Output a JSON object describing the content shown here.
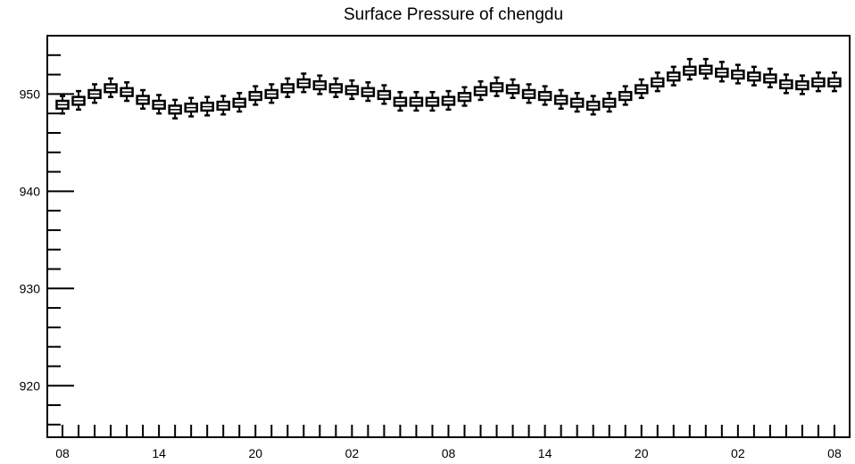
{
  "chart_data": {
    "type": "box",
    "title": "Surface Pressure of chengdu",
    "xlabel": "",
    "ylabel": "",
    "ylim": [
      914.7,
      956.0
    ],
    "y_major_ticks": [
      920,
      930,
      940,
      950
    ],
    "x_tick_labels": [
      "08",
      "14",
      "20",
      "02",
      "08",
      "14",
      "20",
      "02",
      "08"
    ],
    "x_tick_label_hours": [
      0,
      6,
      12,
      18,
      24,
      30,
      36,
      42,
      48
    ],
    "grid": false,
    "legend": "none",
    "box_color": "#000000",
    "boxes": [
      {
        "hour": 0,
        "q1": 948.5,
        "median": 948.9,
        "q3": 949.3,
        "min": 948.0,
        "max": 949.8
      },
      {
        "hour": 1,
        "q1": 948.9,
        "median": 949.3,
        "q3": 949.7,
        "min": 948.4,
        "max": 950.3
      },
      {
        "hour": 2,
        "q1": 949.6,
        "median": 950.0,
        "q3": 950.4,
        "min": 949.1,
        "max": 951.0
      },
      {
        "hour": 3,
        "q1": 950.2,
        "median": 950.6,
        "q3": 951.0,
        "min": 949.7,
        "max": 951.6
      },
      {
        "hour": 4,
        "q1": 949.8,
        "median": 950.2,
        "q3": 950.6,
        "min": 949.3,
        "max": 951.2
      },
      {
        "hour": 5,
        "q1": 949.0,
        "median": 949.4,
        "q3": 949.8,
        "min": 948.5,
        "max": 950.4
      },
      {
        "hour": 6,
        "q1": 948.5,
        "median": 948.9,
        "q3": 949.3,
        "min": 948.0,
        "max": 949.9
      },
      {
        "hour": 7,
        "q1": 948.0,
        "median": 948.4,
        "q3": 948.8,
        "min": 947.5,
        "max": 949.4
      },
      {
        "hour": 8,
        "q1": 948.2,
        "median": 948.6,
        "q3": 949.0,
        "min": 947.7,
        "max": 949.6
      },
      {
        "hour": 9,
        "q1": 948.3,
        "median": 948.7,
        "q3": 949.1,
        "min": 947.8,
        "max": 949.7
      },
      {
        "hour": 10,
        "q1": 948.4,
        "median": 948.8,
        "q3": 949.2,
        "min": 947.9,
        "max": 949.8
      },
      {
        "hour": 11,
        "q1": 948.7,
        "median": 949.1,
        "q3": 949.5,
        "min": 948.2,
        "max": 950.1
      },
      {
        "hour": 12,
        "q1": 949.4,
        "median": 949.8,
        "q3": 950.2,
        "min": 948.9,
        "max": 950.8
      },
      {
        "hour": 13,
        "q1": 949.6,
        "median": 950.0,
        "q3": 950.4,
        "min": 949.1,
        "max": 951.0
      },
      {
        "hour": 14,
        "q1": 950.2,
        "median": 950.6,
        "q3": 951.0,
        "min": 949.7,
        "max": 951.6
      },
      {
        "hour": 15,
        "q1": 950.7,
        "median": 951.1,
        "q3": 951.5,
        "min": 950.2,
        "max": 952.1
      },
      {
        "hour": 16,
        "q1": 950.5,
        "median": 950.9,
        "q3": 951.3,
        "min": 950.0,
        "max": 951.9
      },
      {
        "hour": 17,
        "q1": 950.2,
        "median": 950.6,
        "q3": 951.0,
        "min": 949.7,
        "max": 951.6
      },
      {
        "hour": 18,
        "q1": 950.0,
        "median": 950.4,
        "q3": 950.8,
        "min": 949.5,
        "max": 951.4
      },
      {
        "hour": 19,
        "q1": 949.8,
        "median": 950.2,
        "q3": 950.6,
        "min": 949.3,
        "max": 951.2
      },
      {
        "hour": 20,
        "q1": 949.5,
        "median": 949.9,
        "q3": 950.3,
        "min": 949.0,
        "max": 950.9
      },
      {
        "hour": 21,
        "q1": 948.8,
        "median": 949.2,
        "q3": 949.6,
        "min": 948.3,
        "max": 950.2
      },
      {
        "hour": 22,
        "q1": 948.8,
        "median": 949.2,
        "q3": 949.6,
        "min": 948.3,
        "max": 950.2
      },
      {
        "hour": 23,
        "q1": 948.8,
        "median": 949.2,
        "q3": 949.6,
        "min": 948.3,
        "max": 950.2
      },
      {
        "hour": 24,
        "q1": 948.9,
        "median": 949.3,
        "q3": 949.7,
        "min": 948.4,
        "max": 950.3
      },
      {
        "hour": 25,
        "q1": 949.3,
        "median": 949.7,
        "q3": 950.1,
        "min": 948.8,
        "max": 950.7
      },
      {
        "hour": 26,
        "q1": 949.9,
        "median": 950.3,
        "q3": 950.7,
        "min": 949.4,
        "max": 951.3
      },
      {
        "hour": 27,
        "q1": 950.3,
        "median": 950.7,
        "q3": 951.1,
        "min": 949.8,
        "max": 951.7
      },
      {
        "hour": 28,
        "q1": 950.1,
        "median": 950.5,
        "q3": 950.9,
        "min": 949.6,
        "max": 951.5
      },
      {
        "hour": 29,
        "q1": 949.6,
        "median": 950.0,
        "q3": 950.4,
        "min": 949.1,
        "max": 951.0
      },
      {
        "hour": 30,
        "q1": 949.4,
        "median": 949.8,
        "q3": 950.2,
        "min": 948.9,
        "max": 950.8
      },
      {
        "hour": 31,
        "q1": 949.0,
        "median": 949.4,
        "q3": 949.8,
        "min": 948.5,
        "max": 950.4
      },
      {
        "hour": 32,
        "q1": 948.7,
        "median": 949.1,
        "q3": 949.5,
        "min": 948.2,
        "max": 950.1
      },
      {
        "hour": 33,
        "q1": 948.4,
        "median": 948.8,
        "q3": 949.2,
        "min": 947.9,
        "max": 949.8
      },
      {
        "hour": 34,
        "q1": 948.7,
        "median": 949.1,
        "q3": 949.5,
        "min": 948.2,
        "max": 950.1
      },
      {
        "hour": 35,
        "q1": 949.4,
        "median": 949.8,
        "q3": 950.2,
        "min": 948.9,
        "max": 950.8
      },
      {
        "hour": 36,
        "q1": 950.1,
        "median": 950.5,
        "q3": 950.9,
        "min": 949.6,
        "max": 951.5
      },
      {
        "hour": 37,
        "q1": 950.8,
        "median": 951.2,
        "q3": 951.6,
        "min": 950.3,
        "max": 952.2
      },
      {
        "hour": 38,
        "q1": 951.4,
        "median": 951.8,
        "q3": 952.2,
        "min": 950.9,
        "max": 952.8
      },
      {
        "hour": 39,
        "q1": 952.0,
        "median": 952.4,
        "q3": 952.8,
        "min": 951.5,
        "max": 953.6
      },
      {
        "hour": 40,
        "q1": 952.1,
        "median": 952.5,
        "q3": 952.9,
        "min": 951.6,
        "max": 953.6
      },
      {
        "hour": 41,
        "q1": 951.8,
        "median": 952.2,
        "q3": 952.6,
        "min": 951.3,
        "max": 953.3
      },
      {
        "hour": 42,
        "q1": 951.6,
        "median": 952.0,
        "q3": 952.4,
        "min": 951.1,
        "max": 953.0
      },
      {
        "hour": 43,
        "q1": 951.4,
        "median": 951.8,
        "q3": 952.2,
        "min": 950.9,
        "max": 952.8
      },
      {
        "hour": 44,
        "q1": 951.2,
        "median": 951.6,
        "q3": 952.0,
        "min": 950.7,
        "max": 952.6
      },
      {
        "hour": 45,
        "q1": 950.6,
        "median": 951.0,
        "q3": 951.4,
        "min": 950.1,
        "max": 952.0
      },
      {
        "hour": 46,
        "q1": 950.5,
        "median": 950.9,
        "q3": 951.3,
        "min": 950.0,
        "max": 951.9
      },
      {
        "hour": 47,
        "q1": 950.8,
        "median": 951.2,
        "q3": 951.6,
        "min": 950.3,
        "max": 952.2
      },
      {
        "hour": 48,
        "q1": 950.8,
        "median": 951.2,
        "q3": 951.6,
        "min": 950.3,
        "max": 952.2
      }
    ]
  }
}
